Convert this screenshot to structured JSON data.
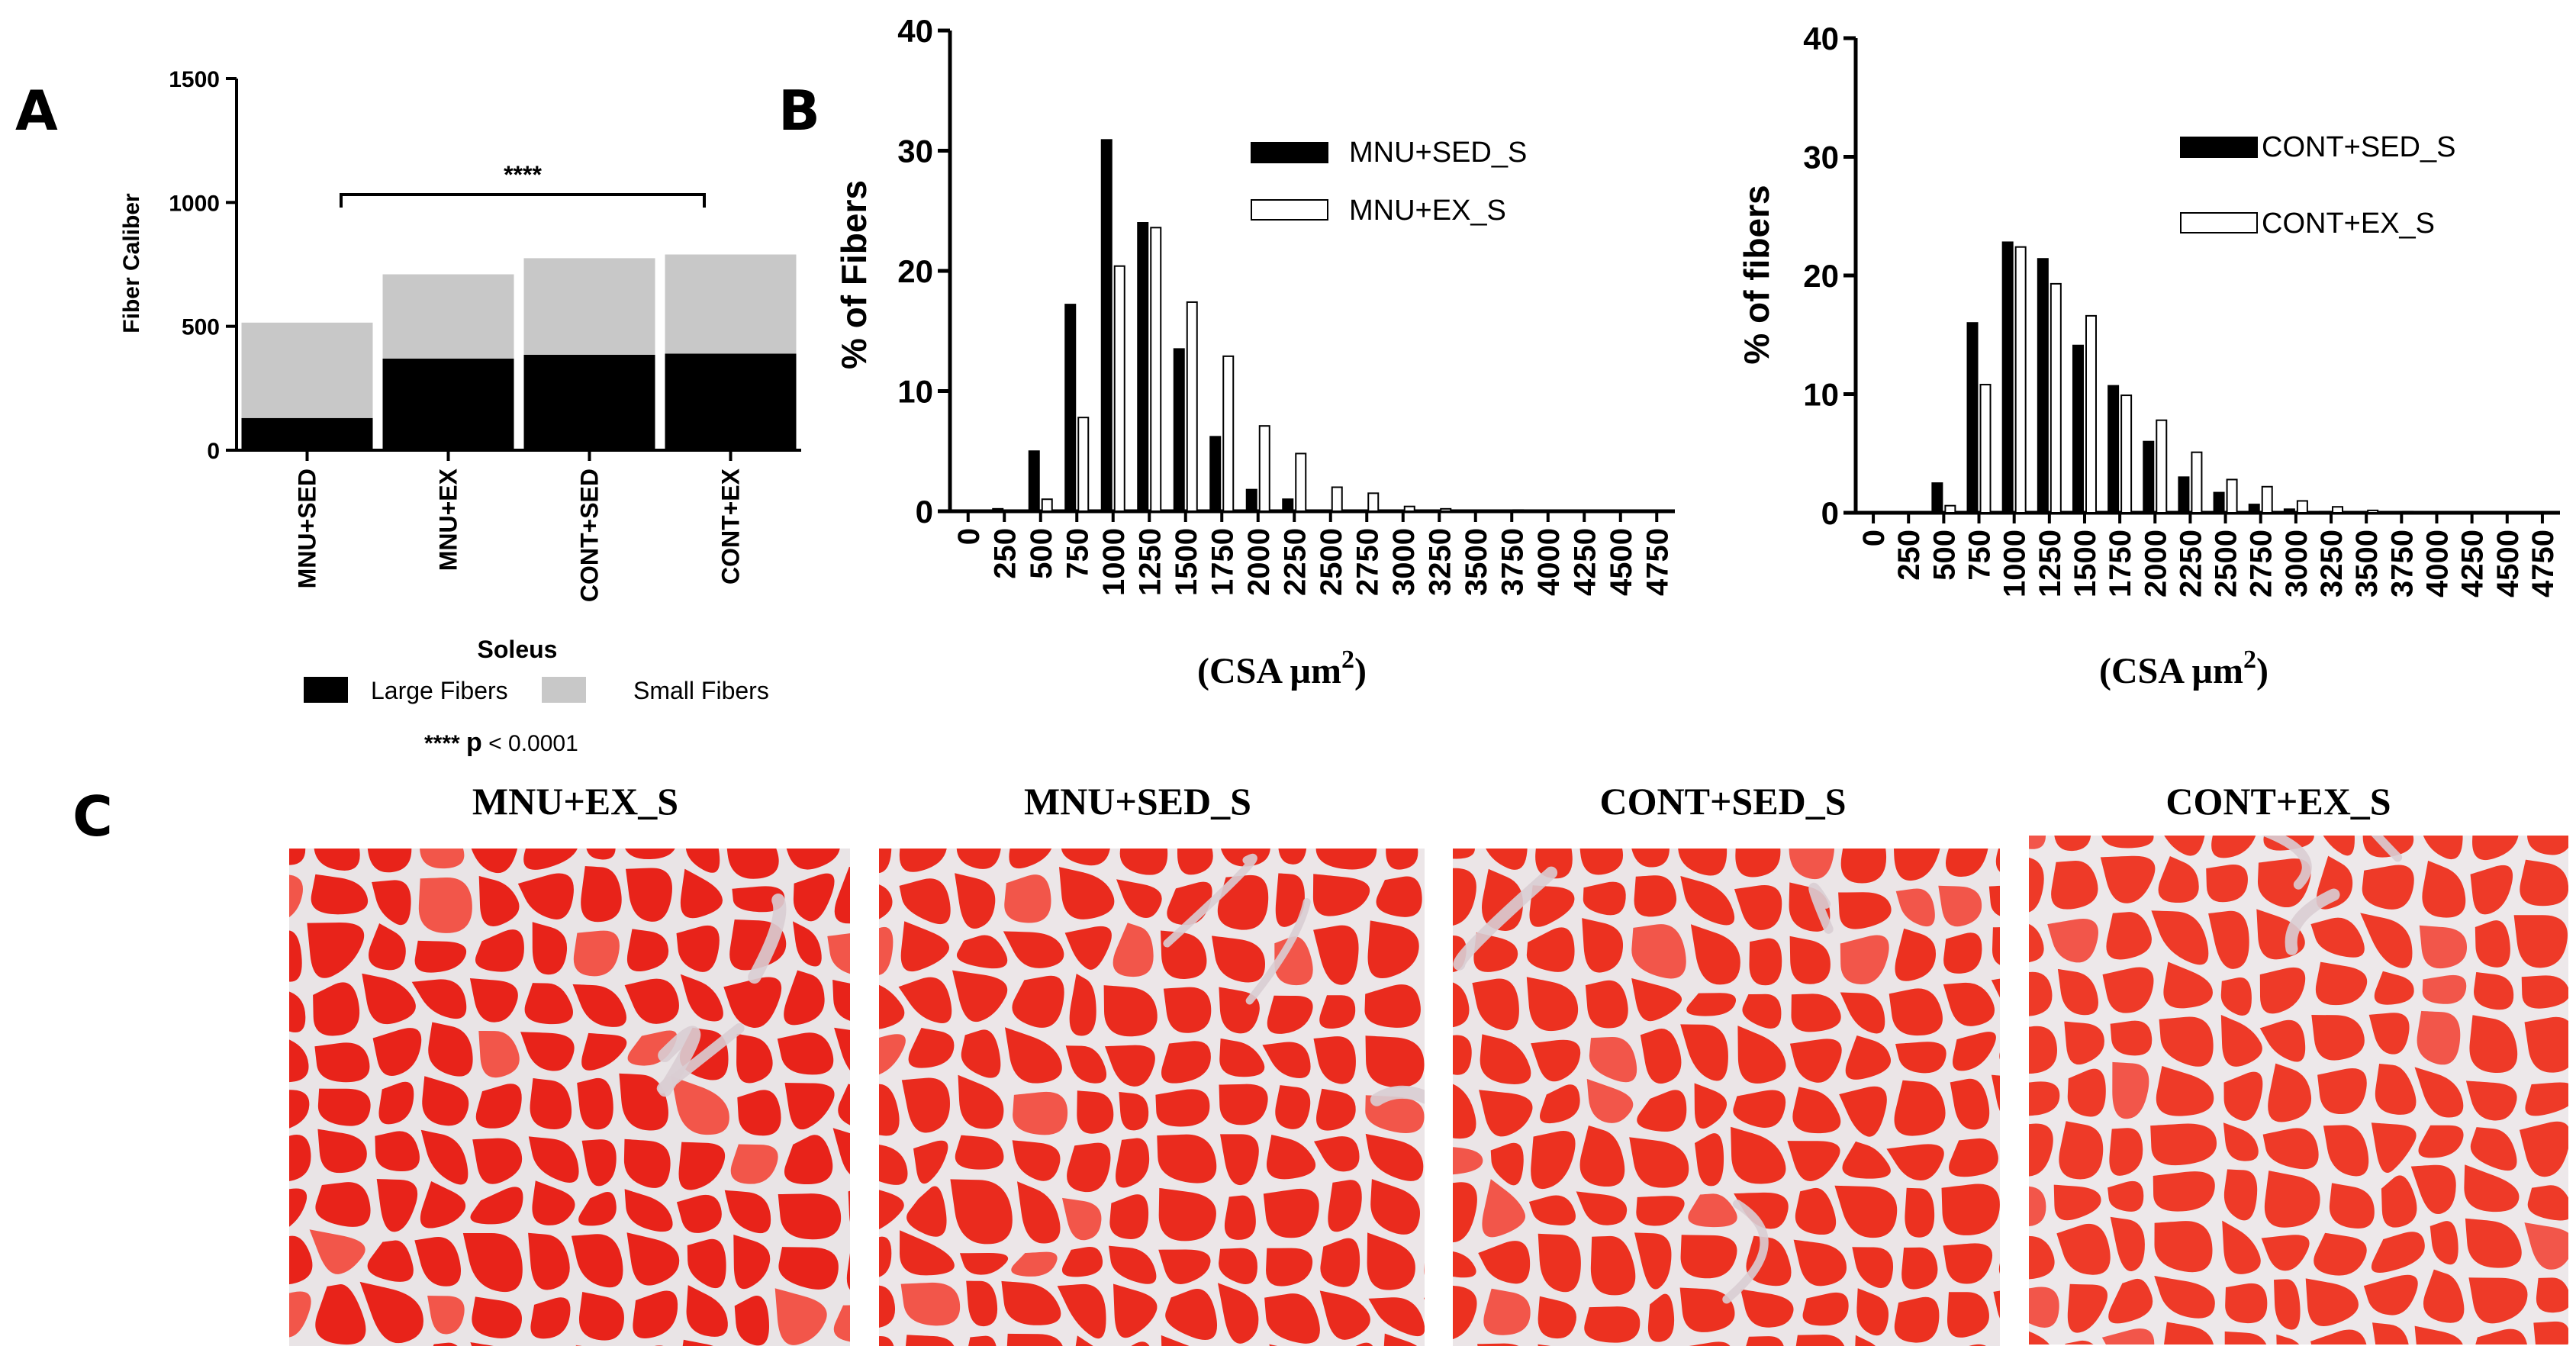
{
  "panels": {
    "a": "A",
    "b": "B",
    "c": "C"
  },
  "chart_data": [
    {
      "id": "fiber_caliber",
      "type": "bar",
      "stacked": true,
      "ylabel": "Fiber Caliber",
      "xlabel": "Soleus",
      "ylim": [
        0,
        1500
      ],
      "yticks": [
        0,
        500,
        1000,
        1500
      ],
      "categories": [
        "MNU+SED",
        "MNU+EX",
        "CONT+SED",
        "CONT+EX"
      ],
      "series": [
        {
          "name": "Large Fibers",
          "color": "#000000",
          "values": [
            130,
            370,
            385,
            390
          ]
        },
        {
          "name": "Small Fibers",
          "color": "#c8c8c8",
          "values": [
            385,
            340,
            390,
            400
          ]
        }
      ],
      "annotation": {
        "label": "****",
        "from": "MNU+SED",
        "to": "CONT+EX"
      },
      "legend_position": "bottom",
      "significance_note": {
        "stars": "****",
        "p": "p",
        "rest": "< 0.0001"
      }
    },
    {
      "id": "csa_mnu",
      "type": "bar",
      "ylabel": "% of Fibers",
      "xlabel_text": "(CSA µm",
      "xlabel_sup": "2",
      "xlabel_close": ")",
      "ylim": [
        0,
        40
      ],
      "yticks": [
        0,
        10,
        20,
        30,
        40
      ],
      "categories": [
        "0",
        "250",
        "500",
        "750",
        "1000",
        "1250",
        "1500",
        "1750",
        "2000",
        "2250",
        "2500",
        "2750",
        "3000",
        "3250",
        "3500",
        "3750",
        "4000",
        "4250",
        "4500",
        "4750"
      ],
      "series": [
        {
          "name": "MNU+SED_S",
          "fill": "#000000",
          "values": [
            0,
            0.2,
            5.0,
            17.2,
            30.9,
            24.0,
            13.5,
            6.2,
            1.8,
            1.0,
            0,
            0,
            0,
            0,
            0,
            0,
            0,
            0,
            0,
            0
          ]
        },
        {
          "name": "MNU+EX_S",
          "fill": "#ffffff",
          "values": [
            0,
            0,
            1.0,
            7.8,
            20.4,
            23.6,
            17.4,
            12.9,
            7.1,
            4.8,
            2.0,
            1.5,
            0.4,
            0.2,
            0,
            0.1,
            0,
            0,
            0,
            0
          ]
        }
      ],
      "legend_position": "top-right"
    },
    {
      "id": "csa_cont",
      "type": "bar",
      "ylabel": "% of fibers",
      "xlabel_text": "(CSA µm",
      "xlabel_sup": "2",
      "xlabel_close": ")",
      "ylim": [
        0,
        40
      ],
      "yticks": [
        0,
        10,
        20,
        30,
        40
      ],
      "categories": [
        "0",
        "250",
        "500",
        "750",
        "1000",
        "1250",
        "1500",
        "1750",
        "2000",
        "2250",
        "2500",
        "2750",
        "3000",
        "3250",
        "3500",
        "3750",
        "4000",
        "4250",
        "4500",
        "4750"
      ],
      "series": [
        {
          "name": "CONT+SED_S",
          "fill": "#000000",
          "values": [
            0,
            0,
            2.5,
            16.0,
            22.8,
            21.4,
            14.1,
            10.7,
            6.0,
            3.0,
            1.7,
            0.7,
            0.3,
            0.1,
            0,
            0,
            0,
            0,
            0,
            0
          ]
        },
        {
          "name": "CONT+EX_S",
          "fill": "#ffffff",
          "values": [
            0,
            0,
            0.6,
            10.8,
            22.4,
            19.3,
            16.6,
            9.9,
            7.8,
            5.1,
            2.8,
            2.2,
            1.0,
            0.5,
            0.2,
            0.1,
            0,
            0,
            0,
            0
          ]
        }
      ],
      "legend_position": "top-right"
    }
  ],
  "micrographs": [
    {
      "title": "MNU+EX_S",
      "bg": "#e8231a",
      "line": "#e9e4e6"
    },
    {
      "title": "MNU+SED_S",
      "bg": "#ea2b1e",
      "line": "#ece6e8"
    },
    {
      "title": "CONT+SED_S",
      "bg": "#ec3120",
      "line": "#ebe5e7"
    },
    {
      "title": "CONT+EX_S",
      "bg": "#ee3a28",
      "line": "#ede8ea"
    }
  ]
}
